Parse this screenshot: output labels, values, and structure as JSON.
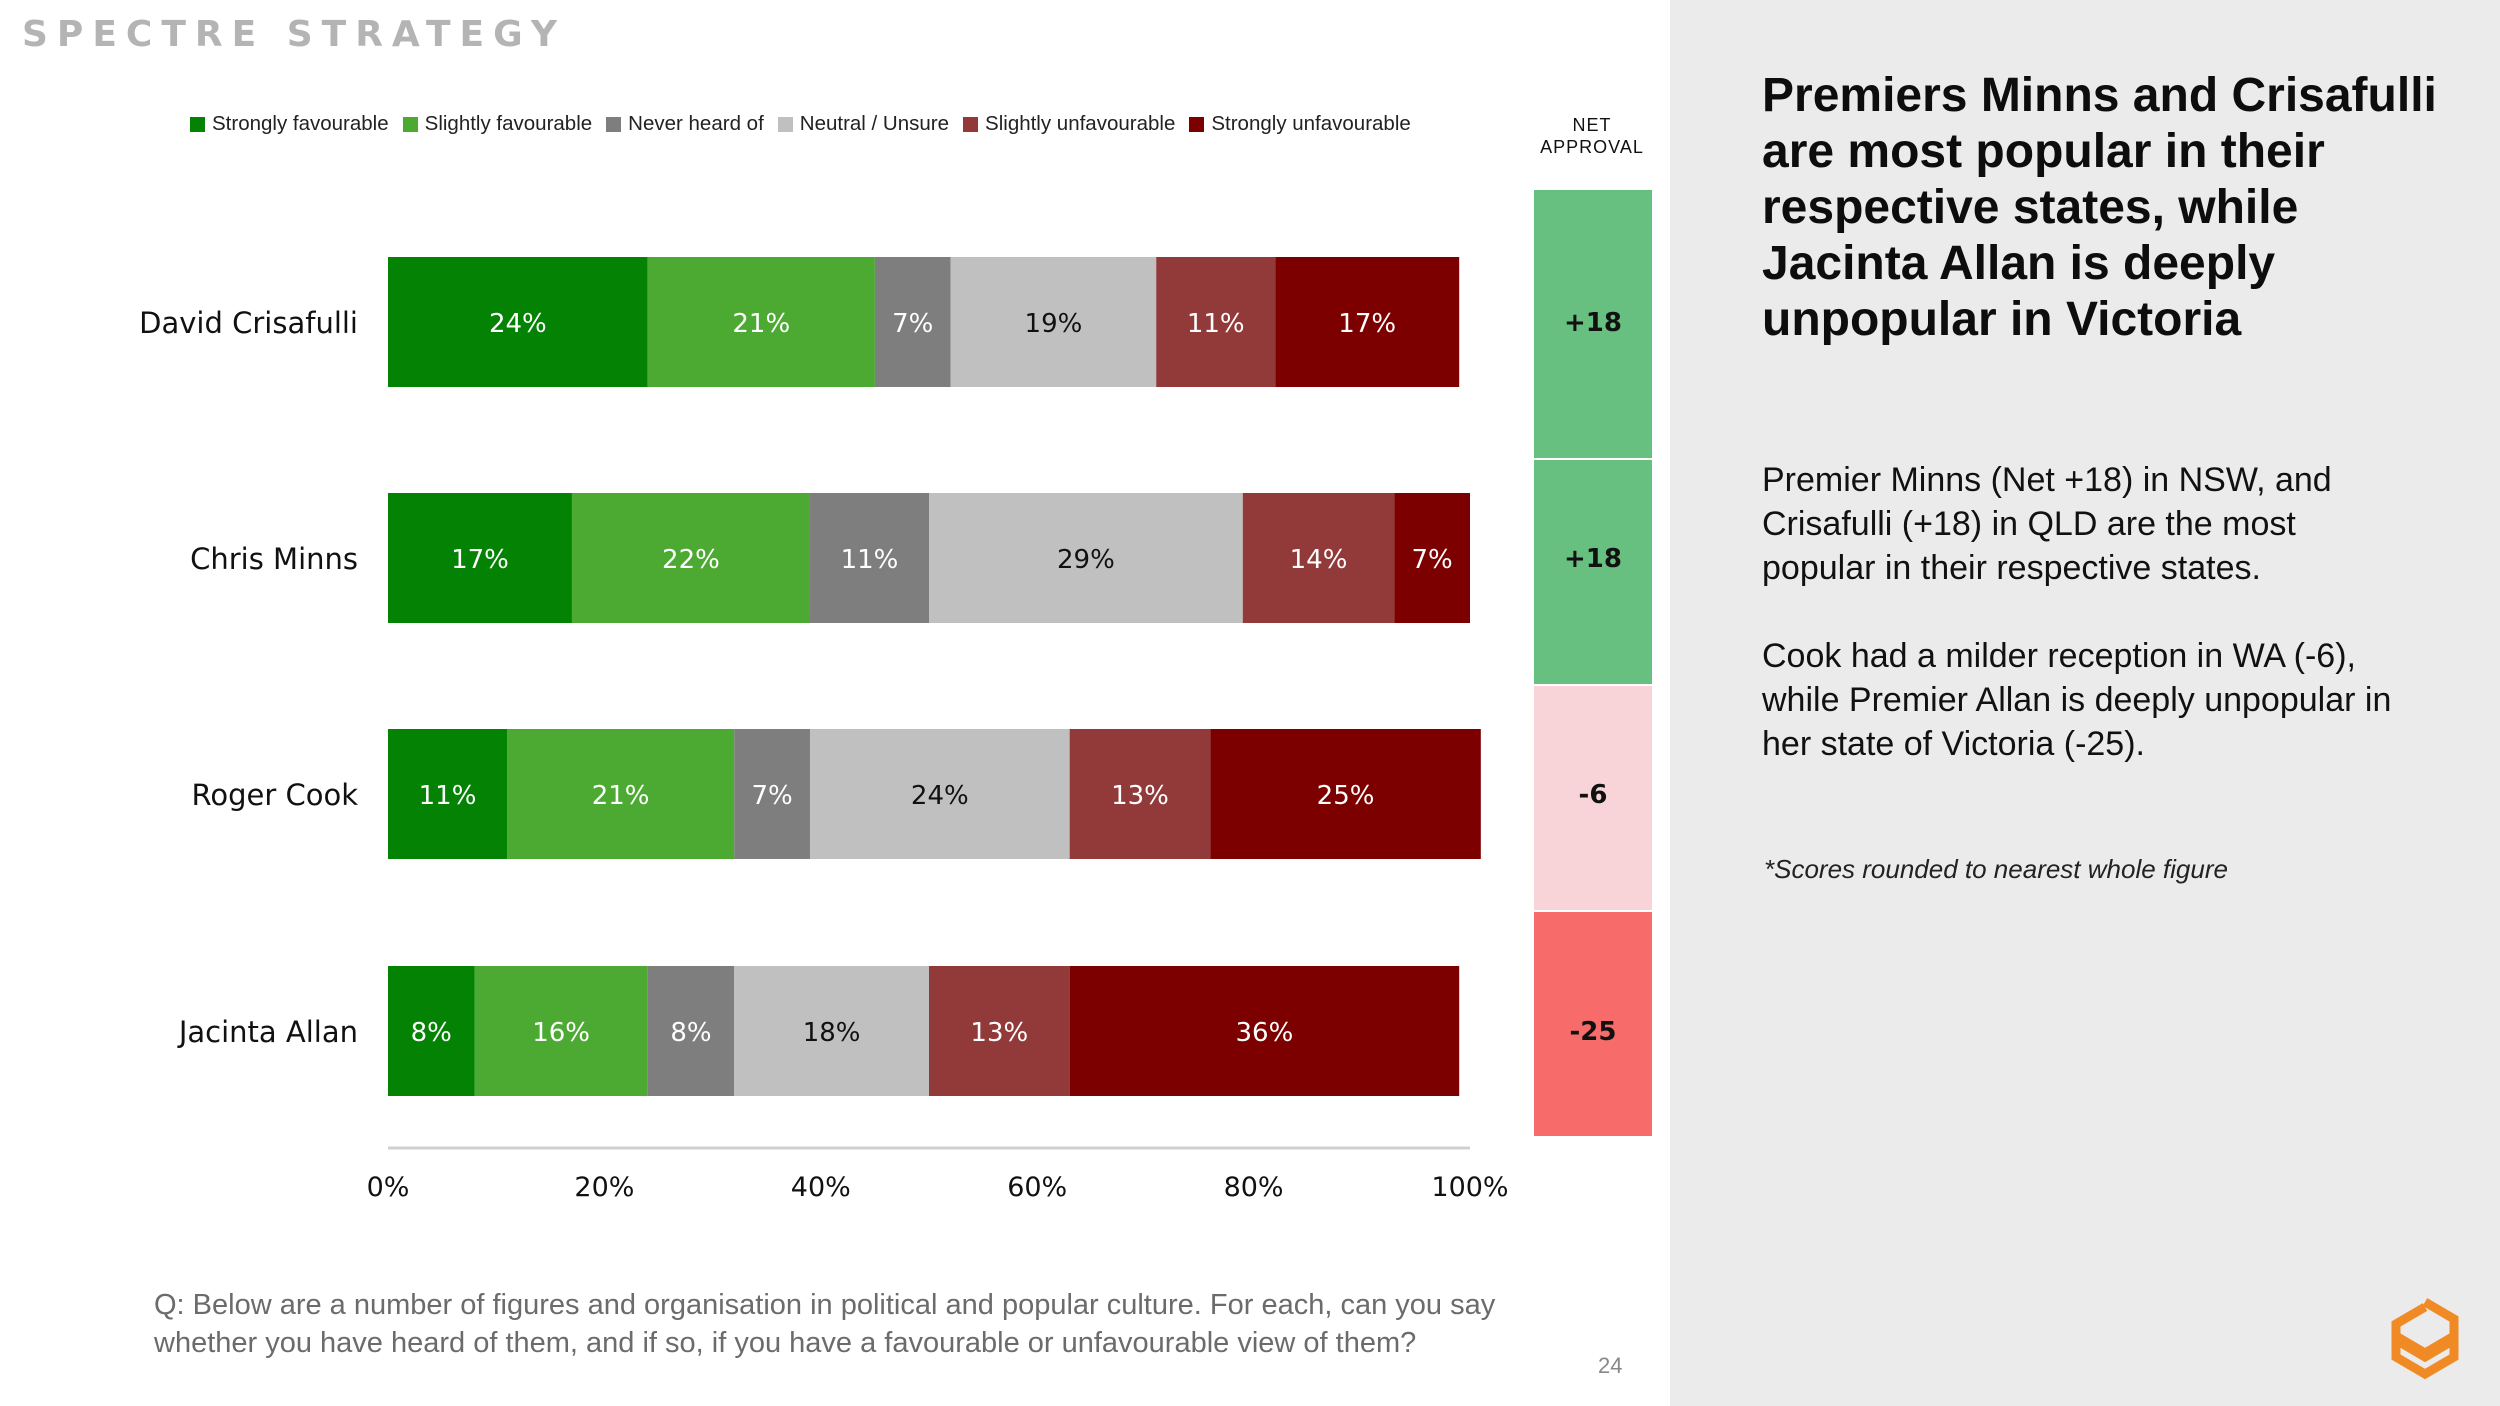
{
  "brand": "SPECTRE STRATEGY",
  "legend": [
    {
      "label": "Strongly favourable",
      "color": "#038203"
    },
    {
      "label": "Slightly favourable",
      "color": "#4caa33"
    },
    {
      "label": "Never heard of",
      "color": "#7e7e7e"
    },
    {
      "label": "Neutral / Unsure",
      "color": "#c0c0c0"
    },
    {
      "label": "Slightly unfavourable",
      "color": "#923a3a"
    },
    {
      "label": "Strongly unfavourable",
      "color": "#7d0000"
    }
  ],
  "net_header": {
    "line1": "NET",
    "line2": "APPROVAL"
  },
  "chart_data": {
    "type": "bar",
    "orientation": "horizontal-stacked-100",
    "categories": [
      "David Crisafulli",
      "Chris Minns",
      "Roger Cook",
      "Jacinta Allan"
    ],
    "series": [
      {
        "name": "Strongly favourable",
        "values": [
          24,
          17,
          11,
          8
        ]
      },
      {
        "name": "Slightly favourable",
        "values": [
          21,
          22,
          21,
          16
        ]
      },
      {
        "name": "Never heard of",
        "values": [
          7,
          11,
          7,
          8
        ]
      },
      {
        "name": "Neutral / Unsure",
        "values": [
          19,
          29,
          24,
          18
        ]
      },
      {
        "name": "Slightly unfavourable",
        "values": [
          11,
          14,
          13,
          13
        ]
      },
      {
        "name": "Strongly unfavourable",
        "values": [
          17,
          7,
          25,
          36
        ]
      }
    ],
    "label_text_colors": [
      "#ffffff",
      "#ffffff",
      "#ffffff",
      "#111111",
      "#ffffff",
      "#ffffff"
    ],
    "xaxis": {
      "ticks": [
        "0%",
        "20%",
        "40%",
        "60%",
        "80%",
        "100%"
      ],
      "range": [
        0,
        100
      ]
    },
    "net_approval": [
      {
        "label": "+18",
        "value": 18,
        "color": "#67c080"
      },
      {
        "label": "+18",
        "value": 18,
        "color": "#67c080"
      },
      {
        "label": "-6",
        "value": -6,
        "color": "#f8d4d9"
      },
      {
        "label": "-25",
        "value": -25,
        "color": "#f76b6b"
      }
    ]
  },
  "question": "Q: Below are a number of figures and organisation in political and popular culture. For each, can you say whether you have heard of them, and if so, if you have a favourable or unfavourable view of them?",
  "page_number": "24",
  "side": {
    "headline": "Premiers Minns and Crisafulli are most popular in their respective states, while Jacinta Allan is deeply unpopular in Victoria",
    "para1": "Premier Minns (Net +18) in NSW, and Crisafulli (+18) in QLD are the most popular in their respective states.",
    "para2": "Cook had a milder reception in WA (-6), while Premier Allan is deeply unpopular in her state of Victoria (-25).",
    "footnote": "*Scores rounded to nearest whole figure"
  },
  "logo_color": "#f08a24"
}
